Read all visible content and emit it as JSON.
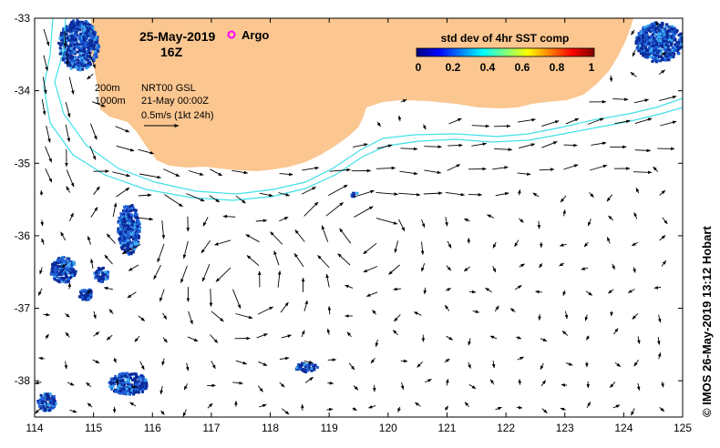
{
  "header": {
    "date": "25-May-2019",
    "time": "16Z",
    "argo_label": "Argo"
  },
  "annotations": {
    "depth_200": "200m",
    "depth_1000": "1000m",
    "product": "NRT00 GSL",
    "product_time": "21-May 00:00Z",
    "vector_scale": "0.5m/s (1kt 24h)"
  },
  "colorbar": {
    "title": "std dev of 4hr SST comp",
    "ticks": [
      "0",
      "0.2",
      "0.4",
      "0.6",
      "0.8",
      "1"
    ],
    "colors": [
      "#00007f",
      "#0000ff",
      "#0080ff",
      "#00ffff",
      "#80ff80",
      "#ffff00",
      "#ff8000",
      "#ff0000",
      "#7f0000"
    ]
  },
  "credit": "© IMOS 26-May-2019 13:12 Hobart",
  "chart_data": {
    "type": "map",
    "x_ticks": [
      "114",
      "115",
      "116",
      "117",
      "118",
      "119",
      "120",
      "121",
      "122",
      "123",
      "124",
      "125"
    ],
    "y_ticks": [
      "-33",
      "-34",
      "-35",
      "-36",
      "-37",
      "-38"
    ],
    "lon_range": [
      114,
      125
    ],
    "lat_range": [
      -38.5,
      -33
    ],
    "land_color": "#fbc690",
    "isobath_color": "#40e0e8",
    "argo_color": "#ff00ff",
    "argo_float": {
      "lon": 117.1,
      "lat": -33.2
    }
  }
}
